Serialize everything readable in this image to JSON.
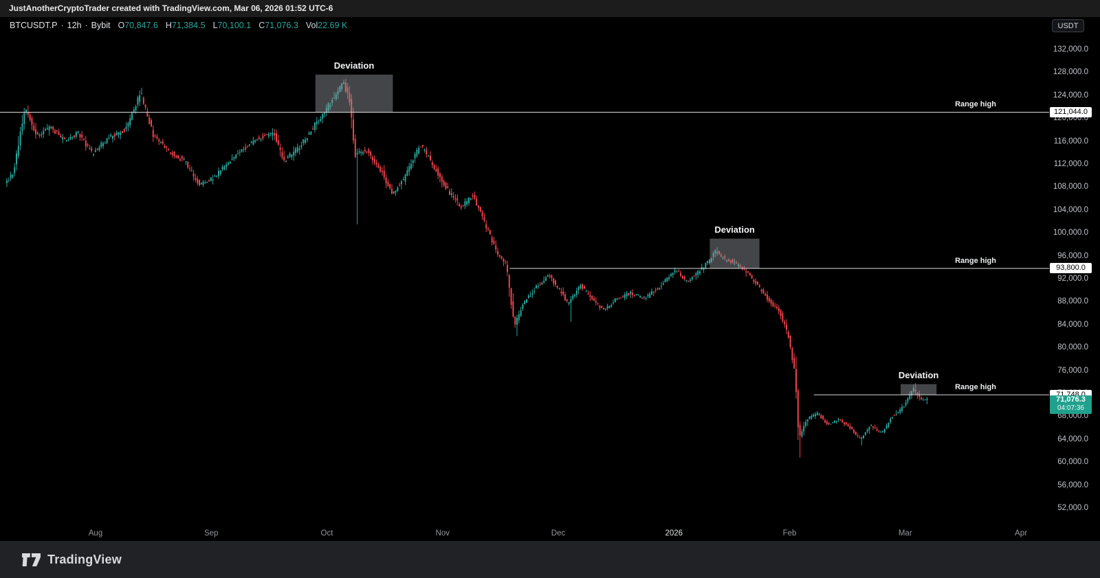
{
  "header": {
    "attribution_text": "JustAnotherCryptoTrader created with TradingView.com, Mar 06, 2026 01:52 UTC-6"
  },
  "legend": {
    "symbol": "BTCUSDT.P",
    "separator": "·",
    "interval": "12h",
    "exchange": "Bybit",
    "ohlc": [
      {
        "label": "O",
        "value": "70,847.6"
      },
      {
        "label": "H",
        "value": "71,384.5"
      },
      {
        "label": "L",
        "value": "70,100.1"
      },
      {
        "label": "C",
        "value": "71,076.3"
      },
      {
        "label": "Vol",
        "value": "22.69 K"
      }
    ]
  },
  "price_scale": {
    "currency_button_label": "USDT"
  },
  "footer": {
    "logo_text": "TradingView"
  },
  "chart_data": {
    "type": "candlestick",
    "symbol": "BTCUSDT.P",
    "exchange": "Bybit",
    "interval": "12h",
    "current_bar": {
      "open": 70847.6,
      "high": 71384.5,
      "low": 70100.1,
      "close": 71076.3,
      "volume_display": "22.69 K"
    },
    "last_price": 71076.3,
    "last_price_label": "71,076.3",
    "countdown": "04:07:36",
    "y_axis": {
      "side": "right",
      "tick_min": 52000,
      "tick_max": 132000,
      "tick_step": 4000,
      "unit": "USDT"
    },
    "x_axis": {
      "tick_labels": [
        "Aug",
        "Sep",
        "Oct",
        "Nov",
        "Dec",
        "2026",
        "Feb",
        "Mar",
        "Apr"
      ],
      "emphasized_label": "2026"
    },
    "levels": [
      {
        "label": "Range high",
        "price": 121044.0,
        "price_label": "121,044.0",
        "from_month": -0.83
      },
      {
        "label": "Range high",
        "price": 93800.0,
        "price_label": "93,800.0",
        "from_month": 3.58
      },
      {
        "label": "Range high",
        "price": 71748.0,
        "price_label": "71,748.0",
        "from_month": 6.21
      }
    ],
    "deviation_boxes": [
      {
        "label": "Deviation",
        "from_month": 1.9,
        "to_month": 2.57,
        "price_top": 127600,
        "price_bottom": 121044
      },
      {
        "label": "Deviation",
        "from_month": 5.31,
        "to_month": 5.74,
        "price_top": 99000,
        "price_bottom": 93800
      },
      {
        "label": "Deviation",
        "from_month": 6.96,
        "to_month": 7.27,
        "price_top": 73600,
        "price_bottom": 71748
      }
    ],
    "price_path": [
      [
        -0.78,
        108500
      ],
      [
        -0.7,
        110500
      ],
      [
        -0.6,
        122000
      ],
      [
        -0.5,
        117000
      ],
      [
        -0.38,
        118500
      ],
      [
        -0.26,
        116000
      ],
      [
        -0.14,
        117500
      ],
      [
        -0.02,
        113800
      ],
      [
        0.12,
        116500
      ],
      [
        0.27,
        118000
      ],
      [
        0.4,
        124500
      ],
      [
        0.51,
        117000
      ],
      [
        0.66,
        114000
      ],
      [
        0.78,
        112500
      ],
      [
        0.91,
        108300
      ],
      [
        1.05,
        110000
      ],
      [
        1.19,
        113000
      ],
      [
        1.37,
        116000
      ],
      [
        1.55,
        117500
      ],
      [
        1.64,
        112500
      ],
      [
        1.77,
        115000
      ],
      [
        1.88,
        118000
      ],
      [
        1.98,
        121000
      ],
      [
        2.09,
        124000
      ],
      [
        2.15,
        126200
      ],
      [
        2.21,
        123000
      ],
      [
        2.25,
        113500
      ],
      [
        2.35,
        114500
      ],
      [
        2.49,
        110500
      ],
      [
        2.57,
        106800
      ],
      [
        2.68,
        109500
      ],
      [
        2.82,
        115500
      ],
      [
        2.92,
        112000
      ],
      [
        3.07,
        107000
      ],
      [
        3.17,
        104500
      ],
      [
        3.27,
        106500
      ],
      [
        3.39,
        101000
      ],
      [
        3.48,
        96500
      ],
      [
        3.56,
        94500
      ],
      [
        3.63,
        83800
      ],
      [
        3.72,
        88000
      ],
      [
        3.84,
        91000
      ],
      [
        3.93,
        92500
      ],
      [
        4.02,
        90000
      ],
      [
        4.1,
        87500
      ],
      [
        4.2,
        91000
      ],
      [
        4.3,
        88500
      ],
      [
        4.4,
        86500
      ],
      [
        4.52,
        88500
      ],
      [
        4.64,
        89500
      ],
      [
        4.76,
        88500
      ],
      [
        4.88,
        90500
      ],
      [
        5.03,
        93500
      ],
      [
        5.12,
        91500
      ],
      [
        5.21,
        93000
      ],
      [
        5.31,
        95000
      ],
      [
        5.37,
        96800
      ],
      [
        5.44,
        95500
      ],
      [
        5.53,
        94800
      ],
      [
        5.62,
        93500
      ],
      [
        5.71,
        91500
      ],
      [
        5.82,
        88500
      ],
      [
        5.92,
        86500
      ],
      [
        6.0,
        82000
      ],
      [
        6.06,
        75000
      ],
      [
        6.09,
        64000
      ],
      [
        6.16,
        67500
      ],
      [
        6.26,
        68500
      ],
      [
        6.34,
        66500
      ],
      [
        6.44,
        67500
      ],
      [
        6.53,
        66000
      ],
      [
        6.62,
        64000
      ],
      [
        6.71,
        66500
      ],
      [
        6.81,
        65000
      ],
      [
        6.9,
        68000
      ],
      [
        6.99,
        69500
      ],
      [
        7.08,
        72800
      ],
      [
        7.14,
        70900
      ],
      [
        7.19,
        71076
      ]
    ],
    "wick_spikes": [
      {
        "month": 0.4,
        "high": 125300
      },
      {
        "month": 2.15,
        "high": 126400
      },
      {
        "month": 2.25,
        "low": 101500
      },
      {
        "month": 3.63,
        "low": 82000
      },
      {
        "month": 4.1,
        "low": 84500
      },
      {
        "month": 5.37,
        "high": 97300
      },
      {
        "month": 6.09,
        "low": 60800
      },
      {
        "month": 6.62,
        "low": 62900
      },
      {
        "month": 7.08,
        "high": 73800
      }
    ],
    "seed": 11,
    "colors": {
      "up": "#2aa79b",
      "down": "#f0444c",
      "background": "#000000",
      "range_line": "#dddde0",
      "box_fill": "rgba(150,153,160,0.45)",
      "last_tag_bg": "#21a18d",
      "axis_tag_bg": "#ffffff",
      "axis_tag_text": "#000000"
    }
  }
}
